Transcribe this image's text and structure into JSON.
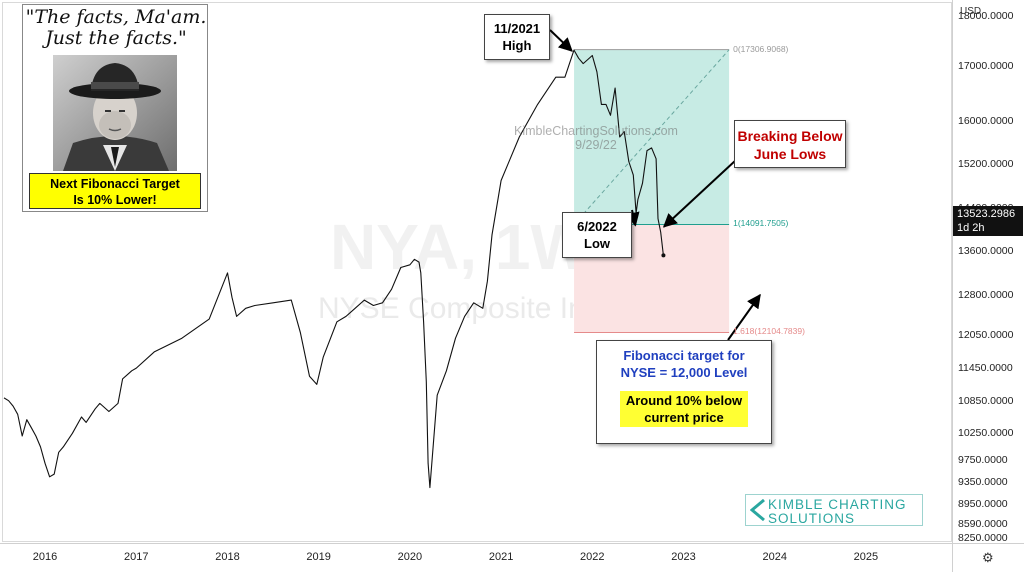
{
  "quote": {
    "line1": "\"The facts, Ma'am.",
    "line2": "Just the facts.\"",
    "note_line1": "Next Fibonacci Target",
    "note_line2": "Is 10% Lower!"
  },
  "watermark": {
    "symbol": "NYA, 1W",
    "name": "NYSE Composite Index",
    "site": "KimbleChartingSolutions.com",
    "date": "9/29/22"
  },
  "annotations": {
    "high_line1": "11/2021",
    "high_line2": "High",
    "low_line1": "6/2022",
    "low_line2": "Low",
    "break_line1": "Breaking Below",
    "break_line2": "June Lows",
    "target_line1": "Fibonacci target for",
    "target_line2": "NYSE = 12,000 Level",
    "target_line3": "Around 10% below",
    "target_line4": "current price"
  },
  "logo": {
    "line1": "KIMBLE CHARTING",
    "line2": "SOLUTIONS"
  },
  "axis": {
    "currency": "USD",
    "price_tag": "13523.2986",
    "price_sub": "1d 2h"
  },
  "colors": {
    "price_line": "#111111",
    "fib_upper_zone": "#c7ebe4",
    "fib_lower_zone": "#fbe3e3",
    "fib_0_line": "#9a9a9a",
    "fib_1_line": "#1f9e8e",
    "fib_1618_line": "#e58a8a",
    "callout_red": "#c00000",
    "callout_blue": "#1f3fbf"
  },
  "chart_data": {
    "type": "line",
    "title": "NYSE Composite Index",
    "ylabel": "",
    "xlabel": "",
    "ylim": [
      8250,
      18000
    ],
    "xlim": [
      2015.55,
      2025.9
    ],
    "yticks": [
      "18000.0000",
      "17000.0000",
      "16000.0000",
      "15200.0000",
      "14400.0000",
      "13600.0000",
      "12800.0000",
      "12050.0000",
      "11450.0000",
      "10850.0000",
      "10250.0000",
      "9750.0000",
      "9350.0000",
      "8950.0000",
      "8590.0000",
      "8250.0000"
    ],
    "xticks": [
      "2016",
      "2017",
      "2018",
      "2019",
      "2020",
      "2021",
      "2022",
      "2023",
      "2024",
      "2025"
    ],
    "fibonacci": {
      "start_year": 2021.8,
      "end_year": 2023.5,
      "levels": [
        {
          "ratio": "0",
          "value": 17306.9068,
          "label": "0(17306.9068)"
        },
        {
          "ratio": "1",
          "value": 14091.7505,
          "label": "1(14091.7505)"
        },
        {
          "ratio": "1.618",
          "value": 12104.7839,
          "label": "1.618(12104.7839)"
        }
      ]
    },
    "series": [
      {
        "x": [
          2015.55,
          2015.6,
          2015.65,
          2015.7,
          2015.75,
          2015.8,
          2015.85,
          2015.9,
          2015.95,
          2016.0,
          2016.05,
          2016.1,
          2016.15,
          2016.2,
          2016.3,
          2016.4,
          2016.45,
          2016.55,
          2016.6,
          2016.7,
          2016.8,
          2016.85,
          2016.95,
          2017.0,
          2017.2,
          2017.5,
          2017.8,
          2018.0,
          2018.05,
          2018.1,
          2018.2,
          2018.3,
          2018.5,
          2018.7,
          2018.8,
          2018.9,
          2018.98,
          2019.05,
          2019.2,
          2019.3,
          2019.4,
          2019.5,
          2019.6,
          2019.7,
          2019.8,
          2019.9,
          2020.0,
          2020.05,
          2020.1,
          2020.12,
          2020.15,
          2020.18,
          2020.2,
          2020.22,
          2020.3,
          2020.4,
          2020.5,
          2020.6,
          2020.7,
          2020.8,
          2020.85,
          2020.9,
          2021.0,
          2021.2,
          2021.4,
          2021.5,
          2021.6,
          2021.7,
          2021.8,
          2021.85,
          2021.9,
          2022.0,
          2022.05,
          2022.1,
          2022.15,
          2022.2,
          2022.25,
          2022.3,
          2022.35,
          2022.4,
          2022.45,
          2022.48,
          2022.5,
          2022.55,
          2022.6,
          2022.65,
          2022.7,
          2022.72,
          2022.75,
          2022.78
        ],
        "y": [
          10900,
          10850,
          10750,
          10600,
          10200,
          10500,
          10350,
          10200,
          10000,
          9700,
          9450,
          9500,
          9900,
          10000,
          10250,
          10550,
          10450,
          10700,
          10800,
          10650,
          10800,
          11250,
          11400,
          11450,
          11750,
          12000,
          12350,
          13200,
          12750,
          12400,
          12550,
          12600,
          12650,
          12700,
          12100,
          11300,
          11150,
          11650,
          12300,
          12400,
          12550,
          12700,
          12600,
          12650,
          12900,
          13300,
          13350,
          13450,
          13400,
          13200,
          12300,
          11200,
          9700,
          9250,
          10950,
          11400,
          12000,
          12400,
          12650,
          12550,
          13050,
          13900,
          14900,
          15700,
          16300,
          16550,
          16800,
          16800,
          17300,
          17150,
          17050,
          17200,
          16900,
          16300,
          16300,
          16100,
          16600,
          15700,
          15800,
          15250,
          15000,
          14300,
          14550,
          14850,
          15450,
          15500,
          15300,
          14200,
          13950,
          13523
        ]
      }
    ]
  }
}
